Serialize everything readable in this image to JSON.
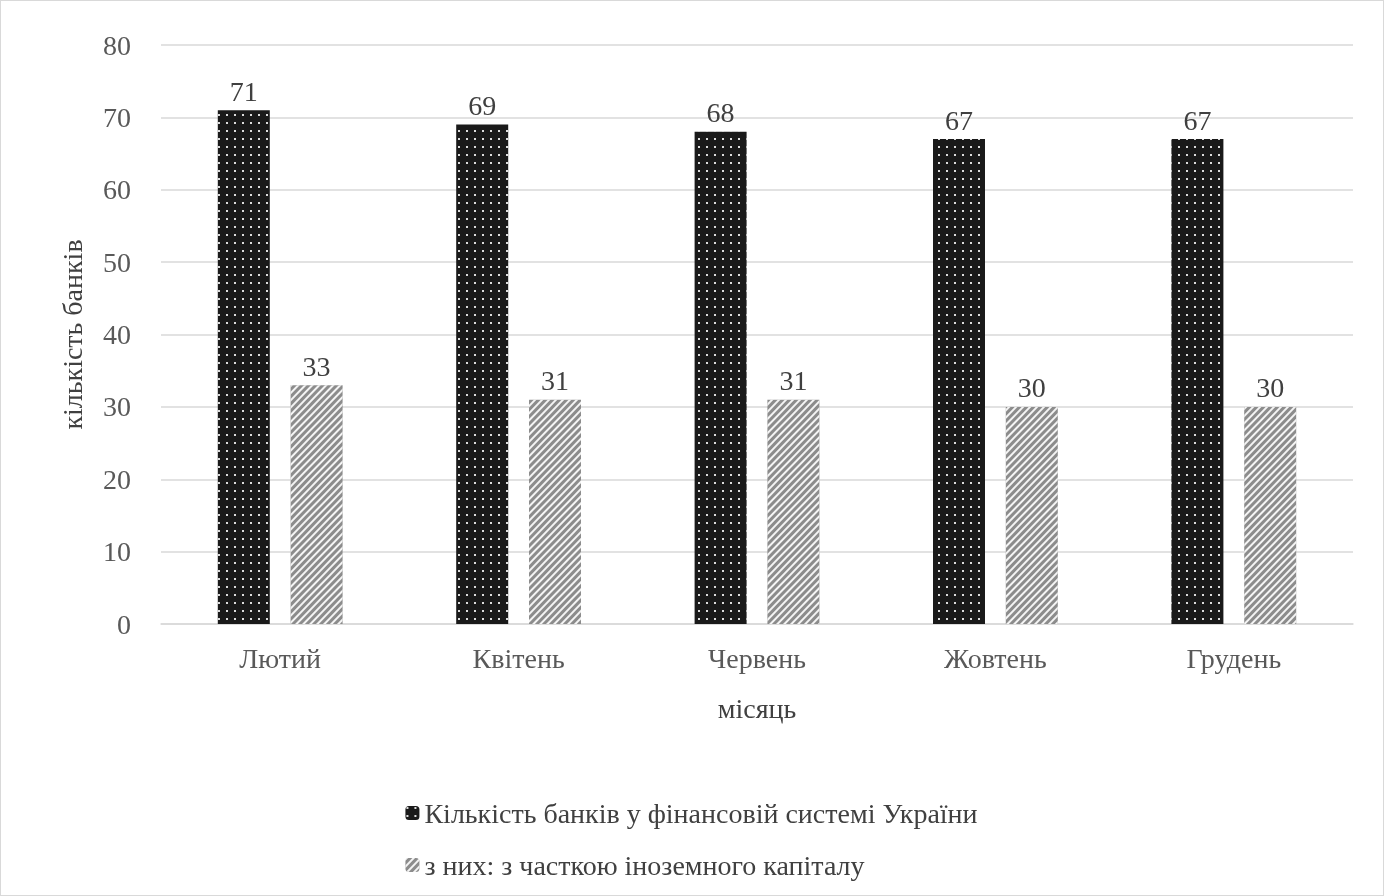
{
  "chart_data": {
    "type": "bar",
    "xlabel": "місяць",
    "ylabel": "кількість банків",
    "categories": [
      "Лютий",
      "Квітень",
      "Червень",
      "Жовтень",
      "Грудень"
    ],
    "series": [
      {
        "name": "Кількість банків у фінансовій системі України",
        "color": "#1a1a1a",
        "values": [
          71,
          69,
          68,
          67,
          67
        ]
      },
      {
        "name": "з них: з часткою іноземного капіталу",
        "color": "#8c8c8c",
        "values": [
          33,
          31,
          31,
          30,
          30
        ]
      }
    ],
    "ylim": [
      0,
      80
    ],
    "yticks": [
      0,
      10,
      20,
      30,
      40,
      50,
      60,
      70,
      80
    ],
    "grid": "y",
    "legend": "bottom",
    "data_labels": true
  }
}
